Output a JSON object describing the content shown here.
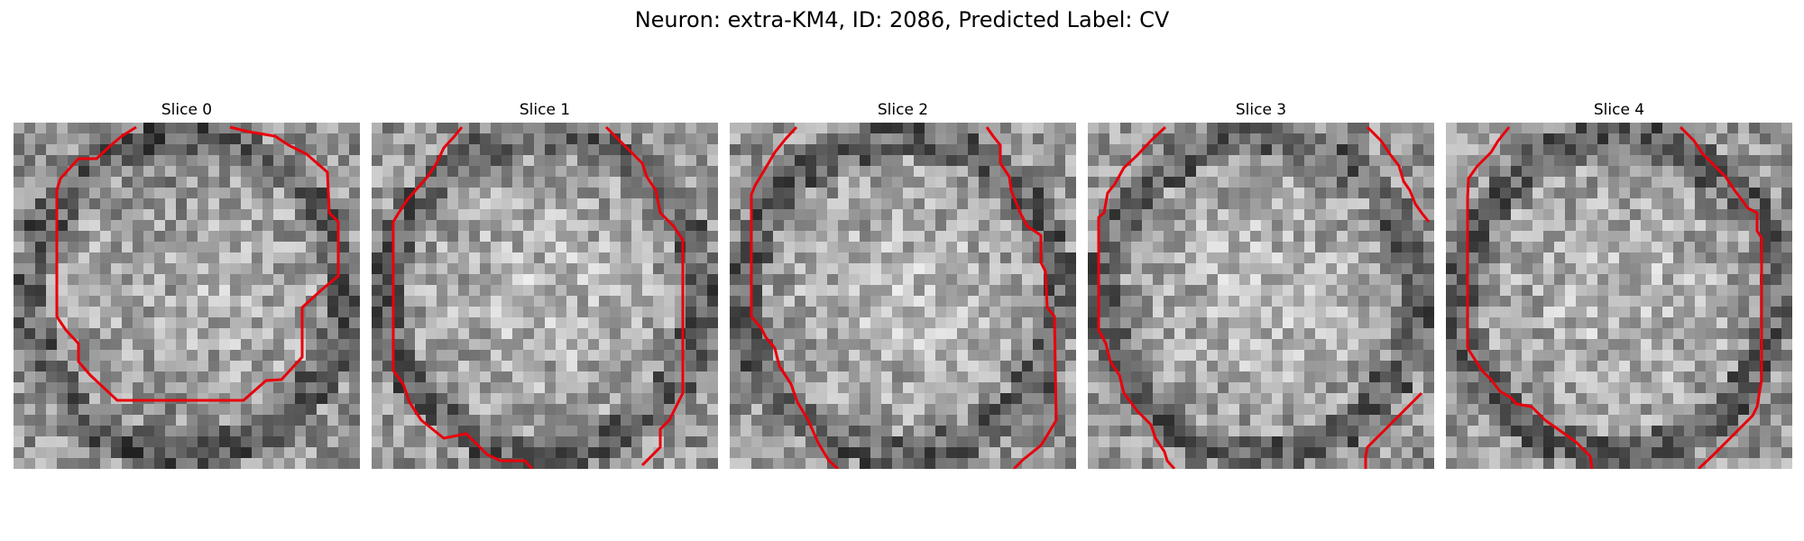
{
  "figure": {
    "title": "Neuron: extra-KM4, ID: 2086, Predicted Label: CV",
    "contour_color": "#e8000b"
  },
  "panels": [
    {
      "title": "Slice 0"
    },
    {
      "title": "Slice 1"
    },
    {
      "title": "Slice 2"
    },
    {
      "title": "Slice 3"
    },
    {
      "title": "Slice 4"
    }
  ]
}
